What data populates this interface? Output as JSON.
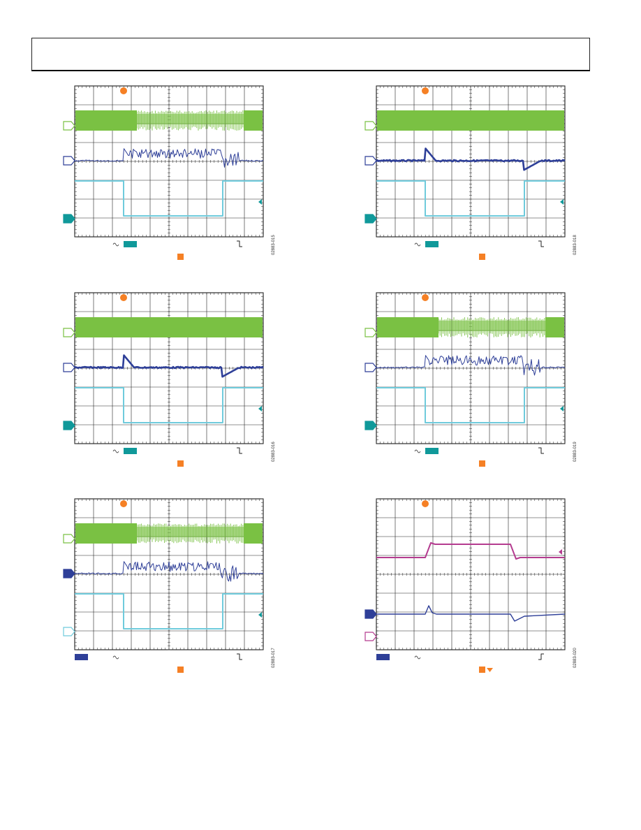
{
  "page": {
    "header_box": true
  },
  "colors": {
    "green": "#7ac143",
    "blue": "#2e3f98",
    "cyan": "#6fcbdc",
    "teal": "#10999a",
    "orange": "#f58025",
    "magenta": "#b43b8f",
    "grid": "#000000"
  },
  "figures": [
    {
      "id": "fig-015",
      "code": "02883-015",
      "traces": [
        "green-noisy",
        "blue-burst",
        "cyan-step-down"
      ],
      "markers": [
        "green-open",
        "blue-open",
        "teal-filled"
      ],
      "bottom": {
        "left_box": "teal",
        "right_symbol": "fall"
      }
    },
    {
      "id": "fig-018",
      "code": "02883-018",
      "traces": [
        "green-solid",
        "blue-thick",
        "cyan-step-down"
      ],
      "markers": [
        "green-open",
        "blue-open",
        "teal-filled"
      ],
      "bottom": {
        "left_box": "teal",
        "right_symbol": "fall"
      }
    },
    {
      "id": "fig-016",
      "code": "02883-016",
      "traces": [
        "green-solid",
        "blue-thick",
        "cyan-step-down"
      ],
      "markers": [
        "green-open",
        "blue-open",
        "teal-filled"
      ],
      "bottom": {
        "left_box": "teal",
        "right_symbol": "fall"
      }
    },
    {
      "id": "fig-019",
      "code": "02883-019",
      "traces": [
        "green-noisy",
        "blue-burst",
        "cyan-step-down"
      ],
      "markers": [
        "green-open",
        "blue-open",
        "teal-filled"
      ],
      "bottom": {
        "left_box": "teal",
        "right_symbol": "fall"
      }
    },
    {
      "id": "fig-017",
      "code": "02883-017",
      "traces": [
        "green-noisy",
        "blue-burst",
        "cyan-step-down"
      ],
      "markers": [
        "green-open",
        "blue-filled",
        "cyan-open"
      ],
      "bottom": {
        "left_box": "blue",
        "right_symbol": "fall"
      }
    },
    {
      "id": "fig-020",
      "code": "02883-020",
      "traces": [
        "magenta-pulse",
        "blue-transient"
      ],
      "markers": [
        "blue-filled",
        "magenta-open"
      ],
      "bottom": {
        "left_box": "blue",
        "right_symbol": "rise"
      }
    }
  ]
}
